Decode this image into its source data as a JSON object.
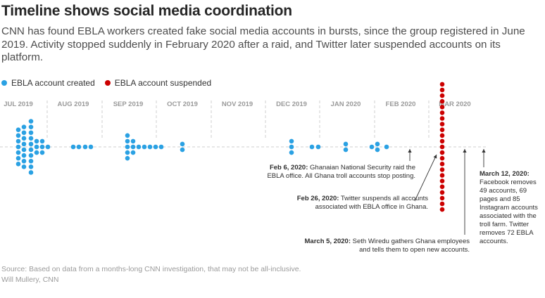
{
  "title": "Timeline shows social media coordination",
  "subtitle": "CNN has found EBLA workers created fake social media accounts in bursts, since the group registered in June 2019. Activity stopped suddenly in February 2020 after a raid, and Twitter later suspended accounts on its platform.",
  "legend": [
    {
      "label": "EBLA account created",
      "color": "#2aa1e3"
    },
    {
      "label": "EBLA account suspended",
      "color": "#cc0000"
    }
  ],
  "chart_data": {
    "type": "timeline-dot",
    "months": [
      "JUL 2019",
      "AUG 2019",
      "SEP 2019",
      "OCT 2019",
      "NOV 2019",
      "DEC 2019",
      "JAN 2020",
      "FEB 2020",
      "MAR 2020"
    ],
    "series": [
      {
        "name": "EBLA account created",
        "color": "#2aa1e3",
        "columns": [
          {
            "date": "Jul 2019 (day 1)",
            "count": 7
          },
          {
            "date": "Jul 2019 (day 2)",
            "count": 8
          },
          {
            "date": "Jul 2019 (day 3)",
            "count": 10
          },
          {
            "date": "Jul 2019 (day 4)",
            "count": 3
          },
          {
            "date": "Jul 2019 (day 5)",
            "count": 3
          },
          {
            "date": "Jul 2019 (day 6)",
            "count": 1
          },
          {
            "date": "Aug 2019 (day 1)",
            "count": 1
          },
          {
            "date": "Aug 2019 (day 2)",
            "count": 1
          },
          {
            "date": "Aug 2019 (day 3)",
            "count": 1
          },
          {
            "date": "Aug 2019 (day 4)",
            "count": 1
          },
          {
            "date": "Sep 2019 (day 1)",
            "count": 5
          },
          {
            "date": "Sep 2019 (day 2)",
            "count": 3
          },
          {
            "date": "Sep 2019 (day 3)",
            "count": 1
          },
          {
            "date": "Sep 2019 (day 4)",
            "count": 1
          },
          {
            "date": "Sep 2019 (day 5)",
            "count": 1
          },
          {
            "date": "Sep 2019 (day 6)",
            "count": 1
          },
          {
            "date": "Sep 2019 (day 7)",
            "count": 1
          },
          {
            "date": "Oct 2019",
            "count": 2
          },
          {
            "date": "Dec 2019 (day 1)",
            "count": 3
          },
          {
            "date": "Dec 2019 (day 2)",
            "count": 1
          },
          {
            "date": "Dec 2019 (day 3)",
            "count": 1
          },
          {
            "date": "Jan 2020",
            "count": 2
          },
          {
            "date": "Jan 2020 (late, day 1)",
            "count": 1
          },
          {
            "date": "Jan 2020 (late, day 2)",
            "count": 2
          },
          {
            "date": "Jan 2020 (late, day 3)",
            "count": 1
          }
        ]
      },
      {
        "name": "EBLA account suspended",
        "color": "#cc0000",
        "columns": [
          {
            "date": "Feb 26, 2020",
            "count": 23
          }
        ]
      }
    ],
    "annotations": [
      {
        "date": "Feb 6, 2020",
        "text": "Ghanaian National Security raid the EBLA office. All Ghana troll accounts stop posting."
      },
      {
        "date": "Feb 26, 2020",
        "text": "Twitter suspends all accounts associated with EBLA office in Ghana."
      },
      {
        "date": "March 5, 2020",
        "text": "Seth Wiredu gathers Ghana employees and tells them to open new accounts."
      },
      {
        "date": "March 12, 2020",
        "text": "Facebook removes 49 accounts, 69 pages and 85 Instagram accounts associated with the troll farm. Twitter removes 72 EBLA accounts."
      }
    ]
  },
  "source": {
    "line1": "Source: Based on data from a months-long CNN investigation, that may not be all-inclusive.",
    "line2": "Will Mullery, CNN"
  }
}
